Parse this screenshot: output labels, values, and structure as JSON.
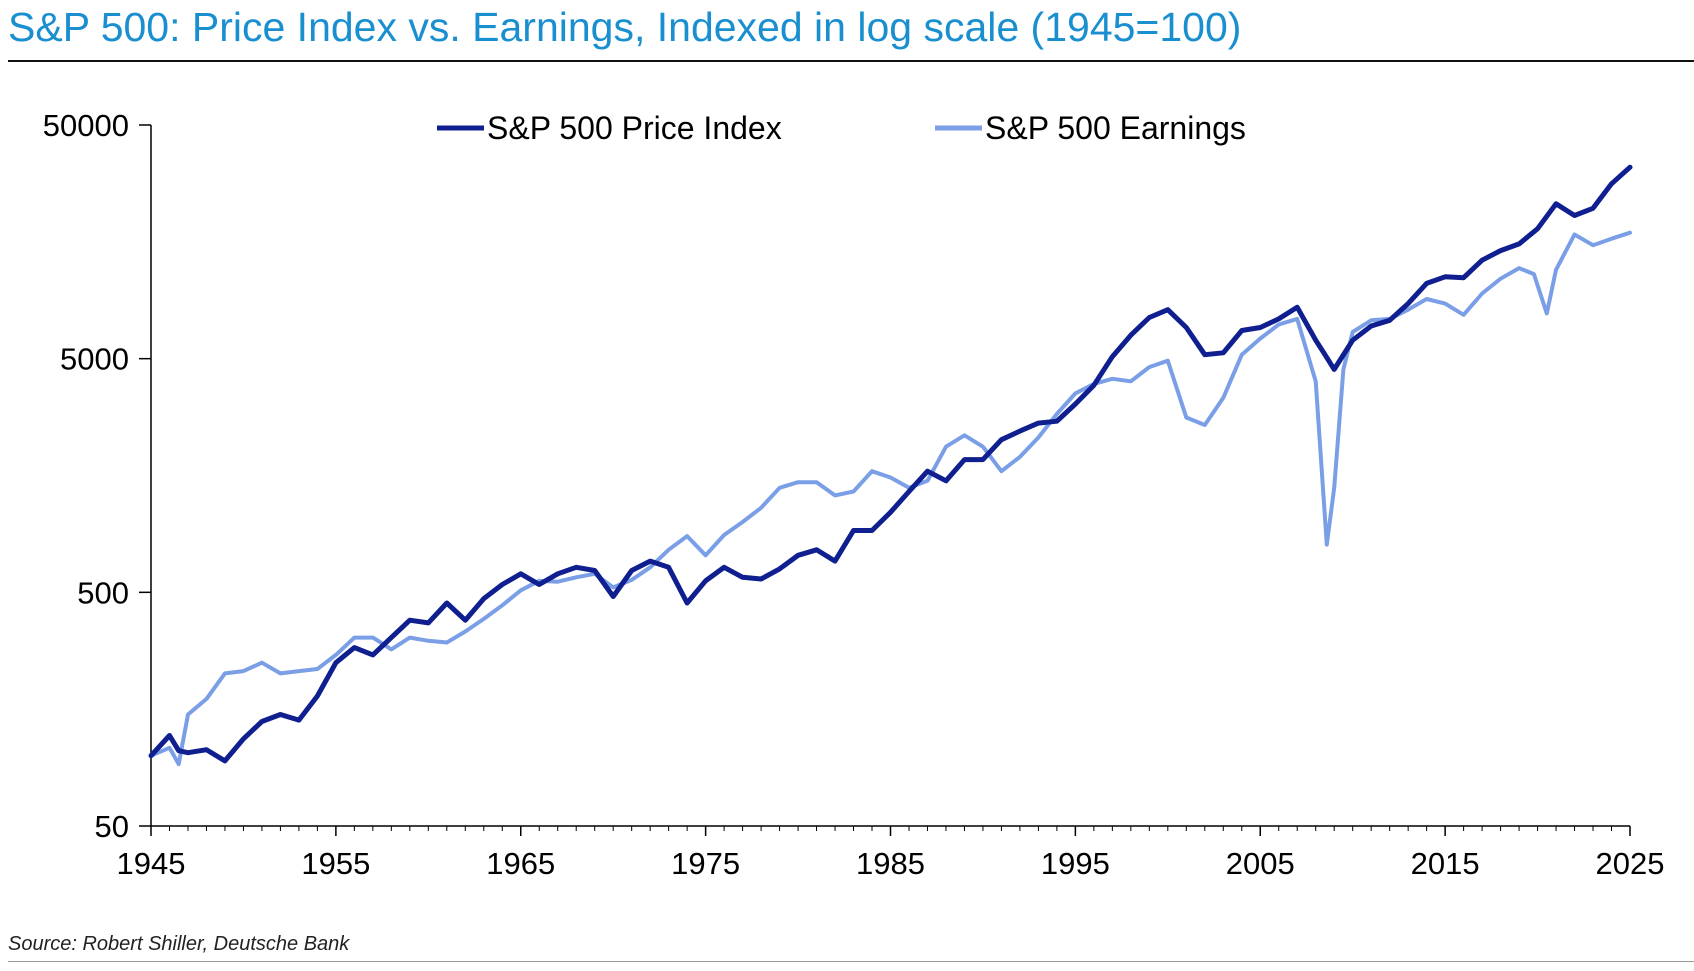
{
  "title": "S&P 500: Price Index vs. Earnings, Indexed in log scale (1945=100)",
  "source": "Source: Robert Shiller, Deutsche Bank",
  "colors": {
    "title": "#1a8fd0",
    "price": "#0f1f8f",
    "earnings": "#7a9fe6"
  },
  "chart_data": {
    "type": "line",
    "title": "S&P 500: Price Index vs. Earnings, Indexed in log scale (1945=100)",
    "xlabel": "",
    "ylabel": "",
    "y_scale": "log",
    "xlim": [
      1945,
      2025
    ],
    "ylim": [
      50,
      50000
    ],
    "x_ticks": [
      "1945",
      "1955",
      "1965",
      "1975",
      "1985",
      "1995",
      "2005",
      "2015",
      "2025"
    ],
    "y_ticks": [
      "50",
      "500",
      "5000",
      "50000"
    ],
    "legend_position": "top-center",
    "grid": false,
    "series": [
      {
        "name": "S&P 500 Price Index",
        "color": "#0f1f8f",
        "points": [
          [
            1945,
            100
          ],
          [
            1946,
            122
          ],
          [
            1946.5,
            105
          ],
          [
            1947,
            103
          ],
          [
            1948,
            106
          ],
          [
            1949,
            95
          ],
          [
            1950,
            118
          ],
          [
            1951,
            140
          ],
          [
            1952,
            150
          ],
          [
            1953,
            142
          ],
          [
            1954,
            180
          ],
          [
            1955,
            250
          ],
          [
            1956,
            290
          ],
          [
            1957,
            270
          ],
          [
            1958,
            320
          ],
          [
            1959,
            380
          ],
          [
            1960,
            370
          ],
          [
            1961,
            450
          ],
          [
            1962,
            380
          ],
          [
            1963,
            470
          ],
          [
            1964,
            540
          ],
          [
            1965,
            600
          ],
          [
            1966,
            540
          ],
          [
            1967,
            600
          ],
          [
            1968,
            640
          ],
          [
            1969,
            620
          ],
          [
            1970,
            480
          ],
          [
            1971,
            620
          ],
          [
            1972,
            680
          ],
          [
            1973,
            640
          ],
          [
            1974,
            450
          ],
          [
            1975,
            560
          ],
          [
            1976,
            640
          ],
          [
            1977,
            580
          ],
          [
            1978,
            570
          ],
          [
            1979,
            630
          ],
          [
            1980,
            720
          ],
          [
            1981,
            760
          ],
          [
            1982,
            680
          ],
          [
            1983,
            920
          ],
          [
            1984,
            920
          ],
          [
            1985,
            1100
          ],
          [
            1986,
            1350
          ],
          [
            1987,
            1650
          ],
          [
            1988,
            1500
          ],
          [
            1989,
            1850
          ],
          [
            1990,
            1850
          ],
          [
            1991,
            2250
          ],
          [
            1992,
            2450
          ],
          [
            1993,
            2650
          ],
          [
            1994,
            2700
          ],
          [
            1995,
            3200
          ],
          [
            1996,
            3850
          ],
          [
            1997,
            5100
          ],
          [
            1998,
            6300
          ],
          [
            1999,
            7500
          ],
          [
            2000,
            8100
          ],
          [
            2001,
            6800
          ],
          [
            2002,
            5200
          ],
          [
            2003,
            5300
          ],
          [
            2004,
            6600
          ],
          [
            2005,
            6800
          ],
          [
            2006,
            7400
          ],
          [
            2007,
            8300
          ],
          [
            2008,
            6000
          ],
          [
            2008.5,
            5200
          ],
          [
            2009,
            4500
          ],
          [
            2010,
            6000
          ],
          [
            2011,
            6900
          ],
          [
            2012,
            7300
          ],
          [
            2013,
            8600
          ],
          [
            2014,
            10500
          ],
          [
            2015,
            11200
          ],
          [
            2016,
            11100
          ],
          [
            2017,
            13200
          ],
          [
            2018,
            14500
          ],
          [
            2019,
            15500
          ],
          [
            2020,
            18000
          ],
          [
            2021,
            23000
          ],
          [
            2022,
            20500
          ],
          [
            2023,
            22000
          ],
          [
            2024,
            28000
          ],
          [
            2025,
            33000
          ]
        ]
      },
      {
        "name": "S&P 500 Earnings",
        "color": "#7a9fe6",
        "points": [
          [
            1945,
            100
          ],
          [
            1946,
            108
          ],
          [
            1946.5,
            92
          ],
          [
            1947,
            150
          ],
          [
            1948,
            175
          ],
          [
            1949,
            225
          ],
          [
            1950,
            230
          ],
          [
            1951,
            250
          ],
          [
            1952,
            225
          ],
          [
            1953,
            230
          ],
          [
            1954,
            235
          ],
          [
            1955,
            270
          ],
          [
            1956,
            320
          ],
          [
            1957,
            320
          ],
          [
            1958,
            285
          ],
          [
            1959,
            320
          ],
          [
            1960,
            310
          ],
          [
            1961,
            305
          ],
          [
            1962,
            340
          ],
          [
            1963,
            385
          ],
          [
            1964,
            440
          ],
          [
            1965,
            510
          ],
          [
            1966,
            560
          ],
          [
            1967,
            555
          ],
          [
            1968,
            580
          ],
          [
            1969,
            600
          ],
          [
            1970,
            525
          ],
          [
            1971,
            565
          ],
          [
            1972,
            640
          ],
          [
            1973,
            760
          ],
          [
            1974,
            870
          ],
          [
            1975,
            720
          ],
          [
            1976,
            880
          ],
          [
            1977,
            1000
          ],
          [
            1978,
            1150
          ],
          [
            1979,
            1400
          ],
          [
            1980,
            1480
          ],
          [
            1981,
            1480
          ],
          [
            1982,
            1300
          ],
          [
            1983,
            1350
          ],
          [
            1984,
            1650
          ],
          [
            1985,
            1550
          ],
          [
            1986,
            1400
          ],
          [
            1987,
            1500
          ],
          [
            1988,
            2100
          ],
          [
            1989,
            2350
          ],
          [
            1990,
            2100
          ],
          [
            1991,
            1650
          ],
          [
            1992,
            1900
          ],
          [
            1993,
            2300
          ],
          [
            1994,
            2900
          ],
          [
            1995,
            3550
          ],
          [
            1996,
            3900
          ],
          [
            1997,
            4100
          ],
          [
            1998,
            4000
          ],
          [
            1999,
            4600
          ],
          [
            2000,
            4900
          ],
          [
            2001,
            2800
          ],
          [
            2002,
            2600
          ],
          [
            2003,
            3400
          ],
          [
            2004,
            5200
          ],
          [
            2005,
            6100
          ],
          [
            2006,
            7000
          ],
          [
            2007,
            7400
          ],
          [
            2008,
            4000
          ],
          [
            2008.6,
            800
          ],
          [
            2009,
            1400
          ],
          [
            2009.5,
            4500
          ],
          [
            2010,
            6500
          ],
          [
            2011,
            7300
          ],
          [
            2012,
            7400
          ],
          [
            2013,
            8100
          ],
          [
            2014,
            9000
          ],
          [
            2015,
            8600
          ],
          [
            2016,
            7700
          ],
          [
            2017,
            9500
          ],
          [
            2018,
            11000
          ],
          [
            2019,
            12200
          ],
          [
            2019.8,
            11500
          ],
          [
            2020.5,
            7800
          ],
          [
            2021,
            12000
          ],
          [
            2022,
            17000
          ],
          [
            2023,
            15300
          ],
          [
            2024,
            16300
          ],
          [
            2025,
            17300
          ]
        ]
      }
    ]
  }
}
